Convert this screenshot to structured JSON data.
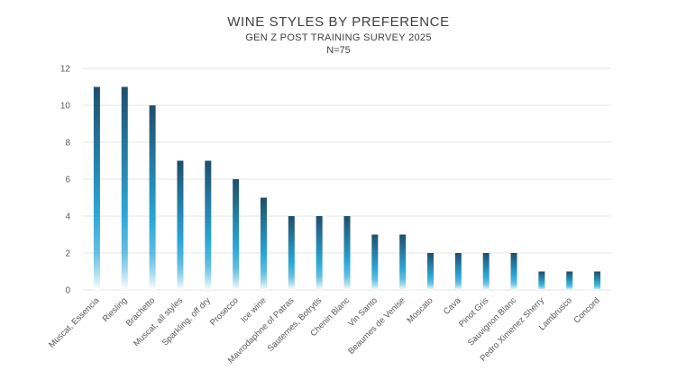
{
  "chart_data": {
    "type": "bar",
    "title": "WINE STYLES BY PREFERENCE",
    "subtitle": "GEN Z POST TRAINING SURVEY 2025",
    "note": "N=75",
    "categories": [
      "Muscat, Essencia",
      "Riesling",
      "Brachetto",
      "Muscat, all styles",
      "Sparkling, off dry",
      "Prosecco",
      "Ice wine",
      "Mavrodaphne of Patras",
      "Sauternes, Botrytis",
      "Chenin Blanc",
      "Vin Santo",
      "Beaumes de Venise",
      "Moscato",
      "Cava",
      "Pinot Gris",
      "Sauvignon Blanc",
      "Pedro Ximenez Sherry",
      "Lambrusco",
      "Concord"
    ],
    "values": [
      11,
      11,
      10,
      7,
      7,
      6,
      5,
      4,
      4,
      4,
      3,
      3,
      2,
      2,
      2,
      2,
      1,
      1,
      1
    ],
    "ylim": [
      0,
      12
    ],
    "yticks": [
      0,
      2,
      4,
      6,
      8,
      10,
      12
    ],
    "grid": true,
    "legend": "none",
    "colors": {
      "bar_top": "#1f4e6b",
      "bar_mid": "#2aa7d6",
      "bar_bottom": "#ffffff",
      "grid": "#e6e6e6",
      "text": "#595959"
    }
  }
}
